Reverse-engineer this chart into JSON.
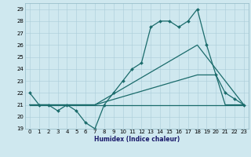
{
  "xlabel": "Humidex (Indice chaleur)",
  "bg_color": "#cfe8ef",
  "grid_color": "#aacdd8",
  "line_color": "#1a6b6b",
  "xlim": [
    -0.5,
    23.5
  ],
  "ylim": [
    19,
    29.5
  ],
  "xticks": [
    0,
    1,
    2,
    3,
    4,
    5,
    6,
    7,
    8,
    9,
    10,
    11,
    12,
    13,
    14,
    15,
    16,
    17,
    18,
    19,
    20,
    21,
    22,
    23
  ],
  "yticks": [
    19,
    20,
    21,
    22,
    23,
    24,
    25,
    26,
    27,
    28,
    29
  ],
  "line1_x": [
    0,
    1,
    2,
    3,
    4,
    5,
    6,
    7,
    8,
    9,
    10,
    11,
    12,
    13,
    14,
    15,
    16,
    17,
    18,
    19,
    20,
    21,
    22,
    23
  ],
  "line1_y": [
    22,
    21,
    21,
    20.5,
    21,
    20.5,
    19.5,
    19,
    21,
    22,
    23,
    24,
    24.5,
    27.5,
    28,
    28,
    27.5,
    28,
    29,
    26,
    23.5,
    22,
    21.5,
    21
  ],
  "line2_x": [
    0,
    2,
    7,
    18,
    23
  ],
  "line2_y": [
    21,
    21,
    21,
    26,
    21
  ],
  "line3_x": [
    0,
    2,
    7,
    18,
    19,
    20,
    21,
    22,
    23
  ],
  "line3_y": [
    21,
    21,
    21,
    23.5,
    23.5,
    23.5,
    21,
    21,
    21
  ],
  "line4_x": [
    0,
    2,
    7,
    23
  ],
  "line4_y": [
    21,
    21,
    21,
    21
  ],
  "marker": "D",
  "markersize": 2.0,
  "linewidth": 0.9,
  "axis_fontsize": 5.5,
  "tick_fontsize": 5.0
}
